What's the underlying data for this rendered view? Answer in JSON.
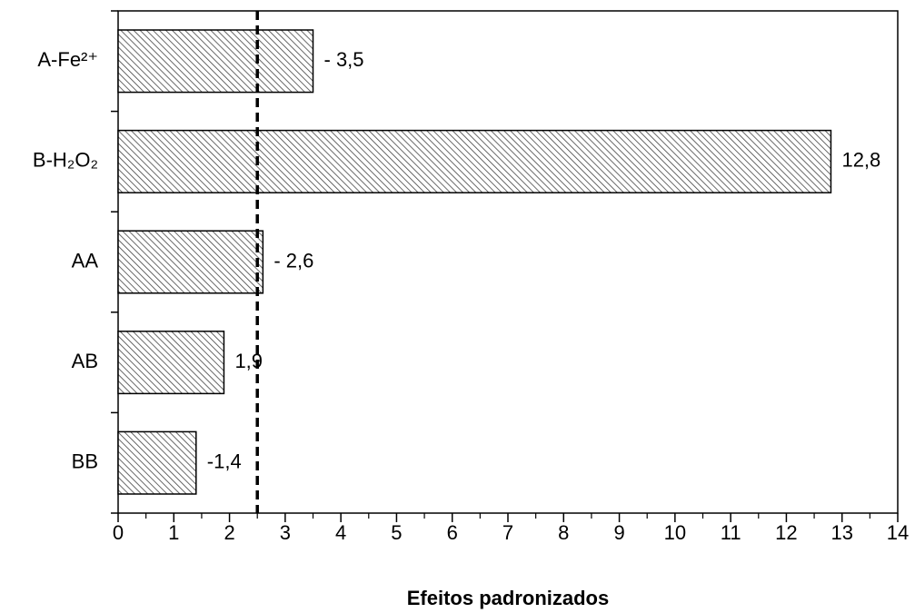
{
  "chart_data": {
    "type": "barh",
    "categories": [
      "A-Fe²⁺",
      "B-H₂O₂",
      "AA",
      "AB",
      "BB"
    ],
    "values": [
      3.5,
      12.8,
      2.6,
      1.9,
      1.4
    ],
    "value_labels": [
      "- 3,5",
      "12,8",
      "- 2,6",
      "1,9",
      "-1,4"
    ],
    "color": "#000000",
    "xlabel": "Efeitos padronizados",
    "xlim": [
      0,
      14
    ],
    "xticks": [
      0,
      1,
      2,
      3,
      4,
      5,
      6,
      7,
      8,
      9,
      10,
      11,
      12,
      13,
      14
    ],
    "reference_line": 2.5,
    "grid": false
  }
}
